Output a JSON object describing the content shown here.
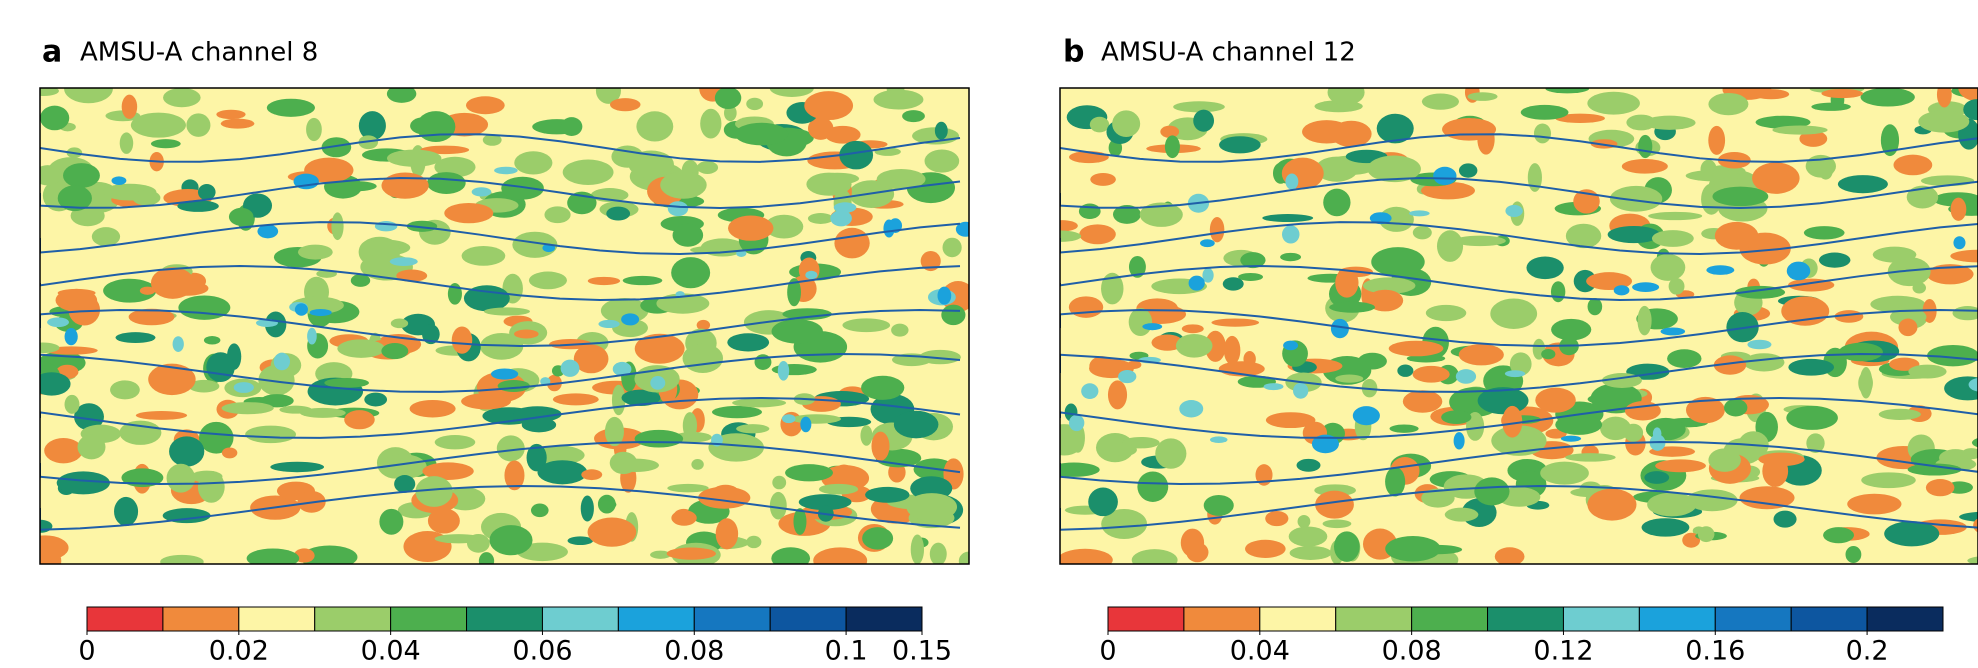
{
  "panels": [
    {
      "label": "a",
      "title": "AMSU-A channel 8",
      "colorbar": {
        "levels": [
          0,
          0.01,
          0.02,
          0.03,
          0.04,
          0.05,
          0.06,
          0.07,
          0.08,
          0.09,
          0.1,
          0.15
        ],
        "colors": [
          "#e8363a",
          "#f08a3c",
          "#fdf5a6",
          "#9bcd6a",
          "#4daf4e",
          "#1b8f6b",
          "#6ecdd0",
          "#1ba2dc",
          "#1577c0",
          "#0d56a0",
          "#0a2c5e"
        ],
        "ticks": [
          0,
          0.02,
          0.04,
          0.06,
          0.08,
          0.1,
          0.15
        ]
      }
    },
    {
      "label": "b",
      "title": "AMSU-A channel 12",
      "colorbar": {
        "levels": [
          0,
          0.02,
          0.04,
          0.06,
          0.08,
          0.1,
          0.12,
          0.14,
          0.16,
          0.18,
          0.2,
          0.25
        ],
        "colors": [
          "#e8363a",
          "#f08a3c",
          "#fdf5a6",
          "#9bcd6a",
          "#4daf4e",
          "#1b8f6b",
          "#6ecdd0",
          "#1ba2dc",
          "#1577c0",
          "#0d56a0",
          "#0a2c5e"
        ],
        "ticks": [
          0,
          0.04,
          0.08,
          0.12,
          0.16,
          0.2
        ]
      }
    }
  ]
}
